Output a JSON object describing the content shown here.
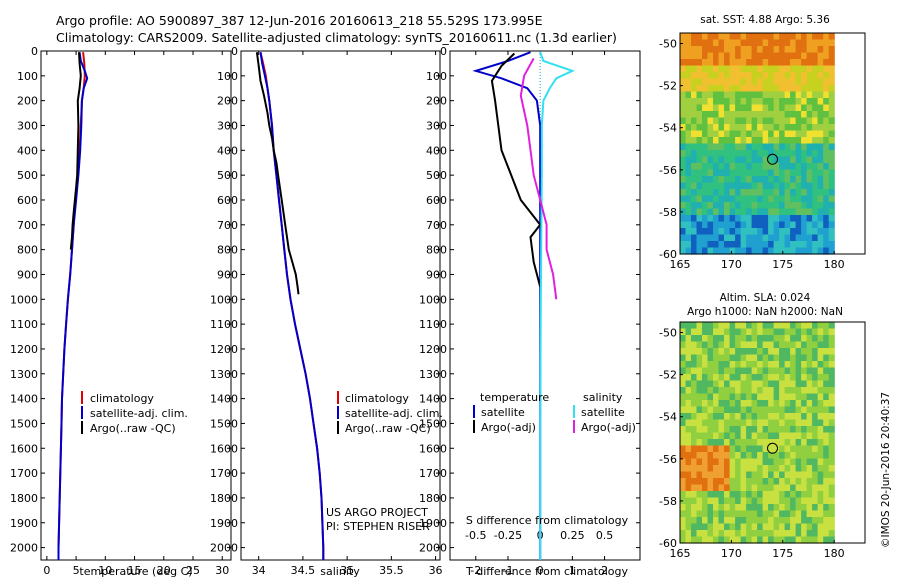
{
  "header": {
    "line1": "Argo profile: AO 5900897_387 12-Jun-2016 20160613_218 55.529S 173.995E",
    "line2": "Climatology: CARS2009. Satellite-adjusted climatology: synTS_20160611.nc (1.3d earlier)"
  },
  "colors": {
    "climatology": "#dd0000",
    "satellite": "#0000cc",
    "argo": "#000000",
    "satellite_s": "#33e0f0",
    "argo_s": "#e020e0"
  },
  "chart_data": [
    {
      "type": "line",
      "name": "temperature",
      "xlabel": "temperature (deg C)",
      "xlim": [
        -1,
        31.5
      ],
      "ylim": [
        2050,
        0
      ],
      "xticks": [
        0,
        5,
        10,
        15,
        20,
        25,
        30
      ],
      "yticks": [
        0,
        100,
        200,
        300,
        400,
        500,
        600,
        700,
        800,
        900,
        1000,
        1100,
        1200,
        1300,
        1400,
        1500,
        1600,
        1700,
        1800,
        1900,
        2000
      ],
      "legend": [
        "climatology",
        "satellite-adj. clim.",
        "Argo(..raw -QC)"
      ],
      "series": [
        {
          "name": "climatology",
          "color_key": "climatology",
          "points": [
            [
              6.2,
              5
            ],
            [
              6.4,
              50
            ],
            [
              6.5,
              100
            ],
            [
              6.3,
              150
            ],
            [
              6.0,
              200
            ],
            [
              5.8,
              300
            ],
            [
              5.6,
              400
            ],
            [
              5.3,
              500
            ],
            [
              4.9,
              600
            ],
            [
              4.6,
              700
            ],
            [
              4.3,
              800
            ],
            [
              4.0,
              900
            ],
            [
              3.6,
              1000
            ],
            [
              3.3,
              1100
            ],
            [
              3.0,
              1200
            ],
            [
              2.8,
              1300
            ],
            [
              2.6,
              1400
            ],
            [
              2.5,
              1500
            ],
            [
              2.4,
              1600
            ],
            [
              2.3,
              1700
            ],
            [
              2.2,
              1800
            ],
            [
              2.1,
              1900
            ],
            [
              2.0,
              2000
            ],
            [
              2.0,
              2050
            ]
          ]
        },
        {
          "name": "satellite-adj. clim.",
          "color_key": "satellite",
          "points": [
            [
              5.6,
              5
            ],
            [
              5.8,
              40
            ],
            [
              6.5,
              80
            ],
            [
              6.9,
              110
            ],
            [
              6.3,
              150
            ],
            [
              6.0,
              200
            ],
            [
              5.9,
              300
            ],
            [
              5.7,
              400
            ],
            [
              5.4,
              500
            ],
            [
              5.0,
              600
            ],
            [
              4.6,
              700
            ],
            [
              4.3,
              800
            ],
            [
              4.0,
              900
            ],
            [
              3.6,
              1000
            ],
            [
              3.3,
              1100
            ],
            [
              3.0,
              1200
            ],
            [
              2.8,
              1300
            ],
            [
              2.6,
              1400
            ],
            [
              2.5,
              1500
            ],
            [
              2.4,
              1600
            ],
            [
              2.3,
              1700
            ],
            [
              2.2,
              1800
            ],
            [
              2.1,
              1900
            ],
            [
              2.0,
              2000
            ],
            [
              2.0,
              2050
            ]
          ]
        },
        {
          "name": "Argo(..raw -QC)",
          "color_key": "argo",
          "points": [
            [
              5.5,
              5
            ],
            [
              5.6,
              50
            ],
            [
              5.8,
              100
            ],
            [
              5.6,
              150
            ],
            [
              5.3,
              200
            ],
            [
              5.4,
              300
            ],
            [
              5.3,
              400
            ],
            [
              5.2,
              500
            ],
            [
              5.0,
              550
            ],
            [
              4.8,
              600
            ],
            [
              4.6,
              650
            ],
            [
              4.4,
              700
            ],
            [
              4.3,
              750
            ],
            [
              4.1,
              800
            ]
          ]
        }
      ]
    },
    {
      "type": "line",
      "name": "salinity",
      "xlabel": "salinity",
      "xlim": [
        33.8,
        36.05
      ],
      "ylim": [
        2050,
        0
      ],
      "xticks": [
        34,
        34.5,
        35,
        35.5,
        36
      ],
      "legend": [
        "climatology",
        "satellite-adj. clim.",
        "Argo(..raw -QC)"
      ],
      "annotations": [
        "US ARGO PROJECT",
        "PI: STEPHEN RISER"
      ],
      "series": [
        {
          "name": "climatology",
          "color_key": "climatology",
          "points": [
            [
              34.02,
              5
            ],
            [
              34.05,
              50
            ],
            [
              34.08,
              100
            ],
            [
              34.1,
              150
            ],
            [
              34.12,
              200
            ],
            [
              34.15,
              300
            ],
            [
              34.17,
              400
            ],
            [
              34.2,
              500
            ],
            [
              34.23,
              600
            ],
            [
              34.26,
              700
            ],
            [
              34.29,
              800
            ],
            [
              34.32,
              900
            ],
            [
              34.36,
              1000
            ],
            [
              34.41,
              1100
            ],
            [
              34.47,
              1200
            ],
            [
              34.53,
              1300
            ],
            [
              34.58,
              1400
            ],
            [
              34.62,
              1500
            ],
            [
              34.66,
              1600
            ],
            [
              34.69,
              1700
            ],
            [
              34.71,
              1800
            ],
            [
              34.72,
              1900
            ],
            [
              34.73,
              2000
            ],
            [
              34.73,
              2050
            ]
          ]
        },
        {
          "name": "satellite-adj. clim.",
          "color_key": "satellite",
          "points": [
            [
              34.02,
              5
            ],
            [
              34.04,
              50
            ],
            [
              34.07,
              100
            ],
            [
              34.1,
              150
            ],
            [
              34.12,
              200
            ],
            [
              34.15,
              300
            ],
            [
              34.17,
              400
            ],
            [
              34.2,
              500
            ],
            [
              34.23,
              600
            ],
            [
              34.26,
              700
            ],
            [
              34.29,
              800
            ],
            [
              34.32,
              900
            ],
            [
              34.36,
              1000
            ],
            [
              34.41,
              1100
            ],
            [
              34.47,
              1200
            ],
            [
              34.53,
              1300
            ],
            [
              34.58,
              1400
            ],
            [
              34.62,
              1500
            ],
            [
              34.66,
              1600
            ],
            [
              34.69,
              1700
            ],
            [
              34.71,
              1800
            ],
            [
              34.72,
              1900
            ],
            [
              34.73,
              2000
            ],
            [
              34.73,
              2050
            ]
          ]
        },
        {
          "name": "Argo(..raw -QC)",
          "color_key": "argo",
          "points": [
            [
              33.98,
              5
            ],
            [
              34.0,
              60
            ],
            [
              34.02,
              120
            ],
            [
              34.06,
              180
            ],
            [
              34.1,
              250
            ],
            [
              34.12,
              300
            ],
            [
              34.15,
              350
            ],
            [
              34.17,
              400
            ],
            [
              34.2,
              450
            ],
            [
              34.22,
              500
            ],
            [
              34.26,
              600
            ],
            [
              34.3,
              700
            ],
            [
              34.34,
              800
            ],
            [
              34.38,
              850
            ],
            [
              34.42,
              900
            ],
            [
              34.44,
              950
            ],
            [
              34.45,
              980
            ]
          ]
        }
      ]
    },
    {
      "type": "line",
      "name": "difference from climatology",
      "xlabel": "T difference from climatology",
      "xlabel_top": "S difference from climatology",
      "xlim": [
        -2.8,
        3.1
      ],
      "ylim": [
        2050,
        0
      ],
      "xticks_bottom": [
        -2,
        -1,
        0,
        1,
        2
      ],
      "xticks_top": [
        -0.5,
        -0.25,
        0,
        0.25,
        0.5
      ],
      "legend_headers": [
        "temperature",
        "salinity"
      ],
      "legend": [
        "satellite",
        "Argo(-adj)",
        "satellite",
        "Argo(-adj)"
      ],
      "series": [
        {
          "name": "satellite",
          "group": "temperature",
          "color_key": "satellite",
          "points": [
            [
              -0.3,
              5
            ],
            [
              -1.0,
              40
            ],
            [
              -2.0,
              80
            ],
            [
              -1.2,
              110
            ],
            [
              -0.4,
              150
            ],
            [
              -0.1,
              200
            ],
            [
              0,
              300
            ],
            [
              0,
              500
            ],
            [
              0,
              1000
            ],
            [
              0,
              1500
            ],
            [
              0,
              2050
            ]
          ]
        },
        {
          "name": "Argo(-adj)",
          "group": "temperature",
          "color_key": "argo",
          "points": [
            [
              -0.8,
              10
            ],
            [
              -1.2,
              60
            ],
            [
              -1.5,
              120
            ],
            [
              -1.4,
              200
            ],
            [
              -1.3,
              300
            ],
            [
              -1.2,
              400
            ],
            [
              -0.9,
              500
            ],
            [
              -0.6,
              600
            ],
            [
              -0.3,
              650
            ],
            [
              0,
              700
            ],
            [
              -0.3,
              750
            ],
            [
              -0.2,
              850
            ],
            [
              0,
              950
            ]
          ]
        },
        {
          "name": "satellite",
          "group": "salinity",
          "color_key": "satellite_s",
          "points": [
            [
              0,
              5
            ],
            [
              0.1,
              40
            ],
            [
              1.0,
              80
            ],
            [
              0.5,
              110
            ],
            [
              0.3,
              150
            ],
            [
              0.1,
              200
            ],
            [
              0.05,
              300
            ],
            [
              0.05,
              500
            ],
            [
              0.02,
              1000
            ],
            [
              0,
              1500
            ],
            [
              0,
              2050
            ]
          ]
        },
        {
          "name": "Argo(-adj)",
          "group": "salinity",
          "color_key": "argo_s",
          "points": [
            [
              -0.2,
              30
            ],
            [
              -0.5,
              100
            ],
            [
              -0.6,
              180
            ],
            [
              -0.4,
              300
            ],
            [
              -0.3,
              400
            ],
            [
              -0.2,
              500
            ],
            [
              0,
              600
            ],
            [
              0.2,
              700
            ],
            [
              0.2,
              800
            ],
            [
              0.4,
              900
            ],
            [
              0.5,
              1000
            ]
          ]
        }
      ]
    },
    {
      "type": "heatmap",
      "name": "sst-map",
      "title": "sat. SST: 4.88  Argo: 5.36",
      "xticks": [
        165,
        170,
        175,
        180
      ],
      "yticks": [
        -50,
        -52,
        -54,
        -56,
        -58,
        -60
      ],
      "xlim": [
        165,
        183
      ],
      "ylim": [
        -60,
        -49.5
      ],
      "marker": [
        174,
        -55.5
      ]
    },
    {
      "type": "heatmap",
      "name": "sla-map",
      "title_line1": "Altim. SLA: 0.024",
      "title_line2": "Argo h1000: NaN h2000: NaN",
      "xticks": [
        165,
        170,
        175,
        180
      ],
      "yticks": [
        -50,
        -52,
        -54,
        -56,
        -58,
        -60
      ],
      "xlim": [
        165,
        183
      ],
      "ylim": [
        -60,
        -49.5
      ],
      "marker": [
        174,
        -55.5
      ]
    }
  ],
  "footer": {
    "credit": "©IMOS 20-Jun-2016 20:40:37"
  }
}
